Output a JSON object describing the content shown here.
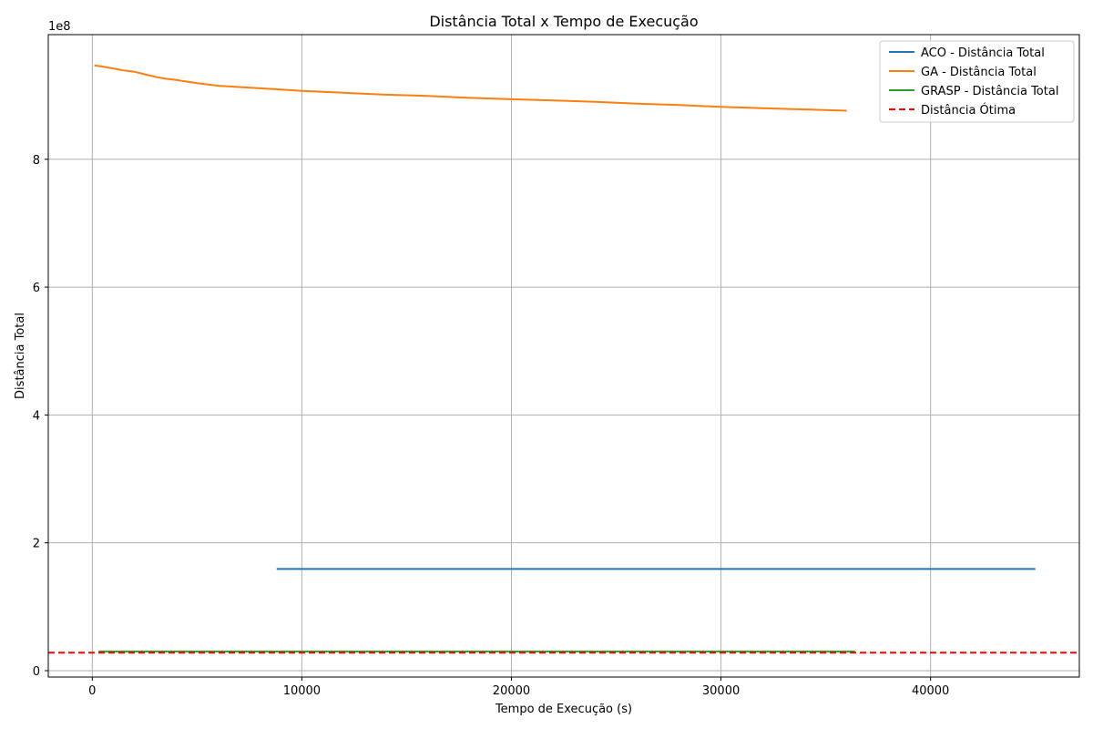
{
  "chart_data": {
    "type": "line",
    "title": "Distância Total x Tempo de Execução",
    "xlabel": "Tempo de Execução (s)",
    "ylabel": "Distância Total",
    "y_multiplier_label": "1e8",
    "xlim": [
      -2100,
      47100
    ],
    "ylim": [
      -0.1,
      9.95
    ],
    "x_ticks": [
      0,
      10000,
      20000,
      30000,
      40000
    ],
    "x_tick_labels": [
      "0",
      "10000",
      "20000",
      "30000",
      "40000"
    ],
    "y_ticks": [
      0,
      2,
      4,
      6,
      8
    ],
    "y_tick_labels": [
      "0",
      "2",
      "4",
      "6",
      "8"
    ],
    "grid": true,
    "legend_position": "top-right",
    "series": [
      {
        "name": "ACO - Distância Total",
        "color": "#1f77b4",
        "style": "solid",
        "x": [
          8800,
          45000
        ],
        "y": [
          1.59,
          1.59
        ]
      },
      {
        "name": "GA - Distância Total",
        "color": "#ff7f0e",
        "style": "solid",
        "x": [
          100,
          500,
          1000,
          1500,
          2000,
          2500,
          3000,
          3500,
          4000,
          5000,
          6000,
          7000,
          8000,
          9000,
          10000,
          12000,
          14000,
          16000,
          18000,
          20000,
          22000,
          24000,
          26000,
          28000,
          30000,
          32000,
          34000,
          36000
        ],
        "y": [
          9.47,
          9.45,
          9.42,
          9.39,
          9.37,
          9.33,
          9.29,
          9.26,
          9.24,
          9.19,
          9.15,
          9.13,
          9.11,
          9.09,
          9.07,
          9.04,
          9.01,
          8.99,
          8.96,
          8.94,
          8.92,
          8.9,
          8.87,
          8.85,
          8.82,
          8.8,
          8.78,
          8.76
        ]
      },
      {
        "name": "GRASP - Distância Total",
        "color": "#2ca02c",
        "style": "solid",
        "x": [
          300,
          36400
        ],
        "y": [
          0.3,
          0.3
        ]
      },
      {
        "name": "Distância Ótima",
        "color": "#ff0000",
        "style": "dashed",
        "x": [
          -2100,
          47100
        ],
        "y": [
          0.28,
          0.28
        ]
      }
    ]
  }
}
